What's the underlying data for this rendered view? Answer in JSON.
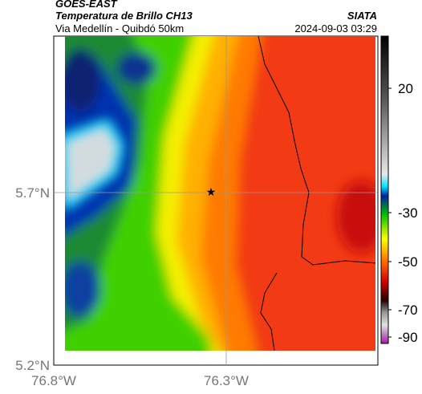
{
  "header": {
    "title": "GOES-EAST",
    "subtitle": "Temperatura de Brillo CH13",
    "route": "Via Medellín - Quibdó 50km",
    "source": "SIATA",
    "timestamp": "2024-09-03 03:29"
  },
  "axes": {
    "x_labels": [
      "76.8°W",
      "76.3°W"
    ],
    "y_labels": [
      "5.7°N",
      "5.2°N"
    ]
  },
  "colorbar": {
    "ticks": [
      20,
      -30,
      -50,
      -70,
      -90
    ]
  }
}
